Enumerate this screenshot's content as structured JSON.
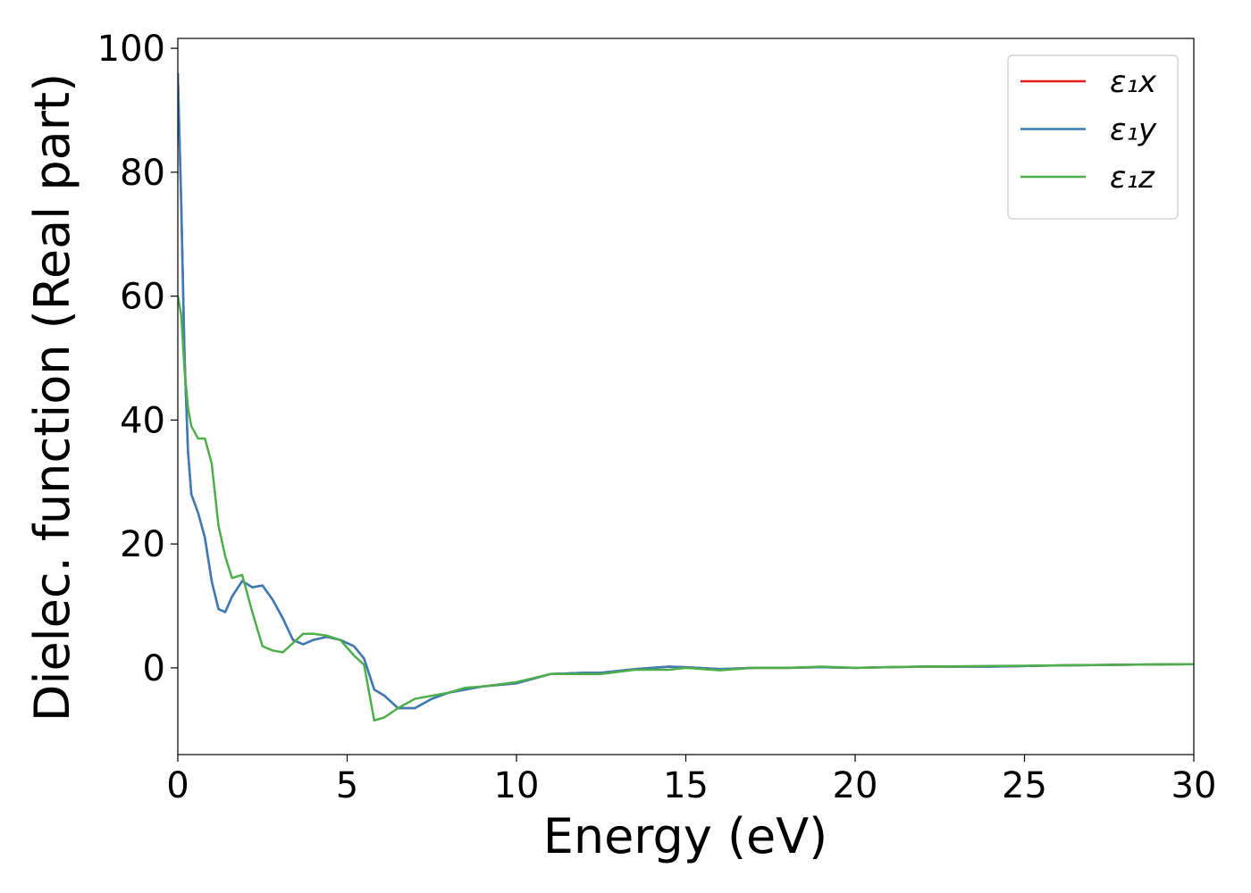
{
  "chart_data": {
    "type": "line",
    "x_label": "Energy (eV)",
    "y_label": "Dielec. function (Real part)",
    "x": [
      0,
      0.1,
      0.2,
      0.3,
      0.4,
      0.6,
      0.8,
      1.0,
      1.2,
      1.4,
      1.6,
      1.9,
      2.2,
      2.5,
      2.8,
      3.1,
      3.4,
      3.7,
      4.0,
      4.4,
      4.8,
      5.2,
      5.5,
      5.8,
      6.1,
      6.5,
      7.0,
      7.5,
      8,
      8.5,
      9,
      10,
      11,
      12,
      12.5,
      13.5,
      14.5,
      15,
      16,
      17,
      18,
      19,
      20,
      21,
      22,
      24,
      26,
      28,
      30
    ],
    "series": [
      {
        "name": "ε₁x",
        "color": "#e41a1c",
        "values": [
          96,
          75,
          50,
          35,
          28,
          25,
          21,
          14,
          9.5,
          9,
          11.5,
          14,
          13,
          13.3,
          11,
          8,
          4.5,
          3.8,
          4.5,
          5,
          4.5,
          3.5,
          1.5,
          -3.5,
          -4.5,
          -6.5,
          -6.5,
          -5,
          -4,
          -3.5,
          -3,
          -2.5,
          -1,
          -0.8,
          -0.8,
          -0.2,
          0.2,
          0.1,
          -0.2,
          0,
          0,
          0.1,
          0,
          0.1,
          0.2,
          0.2,
          0.4,
          0.5,
          0.6
        ]
      },
      {
        "name": "ε₁y",
        "color": "#377eb8",
        "values": [
          96,
          75,
          50,
          35,
          28,
          25,
          21,
          14,
          9.5,
          9,
          11.5,
          14,
          13,
          13.3,
          11,
          8,
          4.5,
          3.8,
          4.5,
          5,
          4.5,
          3.5,
          1.5,
          -3.5,
          -4.5,
          -6.5,
          -6.5,
          -5,
          -4,
          -3.5,
          -3,
          -2.5,
          -1,
          -0.8,
          -0.8,
          -0.2,
          0.2,
          0.1,
          -0.2,
          0,
          0,
          0.1,
          0,
          0.1,
          0.2,
          0.2,
          0.4,
          0.5,
          0.6
        ]
      },
      {
        "name": "ε₁z",
        "color": "#4daf4a",
        "values": [
          60,
          57,
          48,
          42,
          39,
          37,
          37,
          33,
          23,
          18,
          14.5,
          15,
          9,
          3.5,
          2.8,
          2.5,
          4,
          5.5,
          5.5,
          5.2,
          4.5,
          2,
          0.5,
          -8.5,
          -8,
          -6.5,
          -5,
          -4.5,
          -4,
          -3.2,
          -3,
          -2.3,
          -1,
          -1,
          -1,
          -0.3,
          -0.3,
          0,
          -0.4,
          0,
          0,
          0.2,
          0,
          0.1,
          0.2,
          0.3,
          0.4,
          0.5,
          0.6
        ]
      }
    ],
    "xlim": [
      0,
      30
    ],
    "xticks": [
      0,
      5,
      10,
      15,
      20,
      25,
      30
    ],
    "ylim": [
      -14,
      101.6
    ],
    "yticks": [
      0,
      20,
      40,
      60,
      80,
      100
    ],
    "grid": false,
    "legend": "upper right"
  }
}
